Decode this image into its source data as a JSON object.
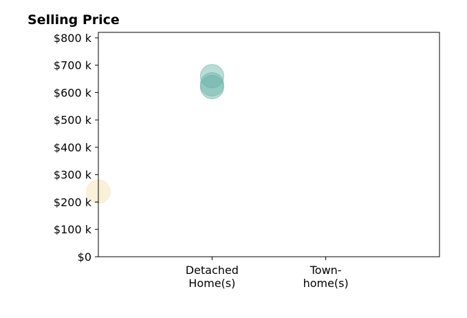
{
  "chart_data": {
    "type": "scatter",
    "title": "Selling Price",
    "xlabel": "",
    "ylabel": "",
    "categories": [
      [
        "Detached",
        "Home(s)"
      ],
      [
        "Town-",
        "home(s)"
      ]
    ],
    "ylim": [
      0,
      820000
    ],
    "yticks": [
      0,
      100000,
      200000,
      300000,
      400000,
      500000,
      600000,
      700000,
      800000
    ],
    "ytick_labels": [
      "$0",
      "$100 k",
      "$200 k",
      "$300 k",
      "$400 k",
      "$500 k",
      "$600 k",
      "$700 k",
      "$800 k"
    ],
    "grid": false,
    "legend": "none",
    "points": [
      {
        "category": "Detached Home(s)",
        "value": 660000,
        "color": "#66b2a6"
      },
      {
        "category": "Detached Home(s)",
        "value": 630000,
        "color": "#66b2a6"
      },
      {
        "category": "Detached Home(s)",
        "value": 620000,
        "color": "#66b2a6"
      },
      {
        "category": "Town-home(s)",
        "value": 238000,
        "color": "#f3dfae"
      }
    ]
  }
}
